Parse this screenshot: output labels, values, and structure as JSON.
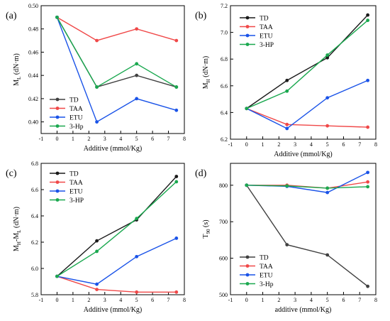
{
  "chart_data": [
    {
      "type": "line",
      "panel": "(a)",
      "xlabel": "Additive (mmol/Kg)",
      "ylabel_main": "M",
      "ylabel_sub": "L",
      "ylabel_unit": " (dN·m)",
      "x": [
        0,
        2.5,
        5,
        7.5
      ],
      "xlim": [
        -1,
        8
      ],
      "ylim": [
        0.39,
        0.5
      ],
      "xticks": [
        -1,
        0,
        1,
        2,
        3,
        4,
        5,
        6,
        7,
        8
      ],
      "yticks": [
        0.4,
        0.42,
        0.44,
        0.46,
        0.48,
        0.5
      ],
      "ytick_labels": [
        "0.40",
        "0.42",
        "0.44",
        "0.46",
        "0.48",
        "0.50"
      ],
      "legend_position": "middle-left",
      "series": [
        {
          "name": "TD",
          "color": "#404040",
          "values": [
            0.49,
            0.43,
            0.44,
            0.43
          ]
        },
        {
          "name": "TAA",
          "color": "#f04848",
          "values": [
            0.49,
            0.47,
            0.48,
            0.47
          ]
        },
        {
          "name": "ETU",
          "color": "#1a53e8",
          "values": [
            0.49,
            0.4,
            0.42,
            0.41
          ]
        },
        {
          "name": "3-Hp",
          "color": "#1aa84f",
          "values": [
            0.49,
            0.43,
            0.45,
            0.43
          ]
        }
      ]
    },
    {
      "type": "line",
      "panel": "(b)",
      "xlabel": "Additive (mmol/Kg)",
      "ylabel_main": "M",
      "ylabel_sub": "H",
      "ylabel_unit": " (dN·m)",
      "x": [
        0,
        2.5,
        5,
        7.5
      ],
      "xlim": [
        -1,
        8
      ],
      "ylim": [
        6.2,
        7.2
      ],
      "xticks": [
        -1,
        0,
        1,
        2,
        3,
        4,
        5,
        6,
        7,
        8
      ],
      "yticks": [
        6.2,
        6.4,
        6.6,
        6.8,
        7.0,
        7.2
      ],
      "ytick_labels": [
        "6.2",
        "6.4",
        "6.6",
        "6.8",
        "7.0",
        "7.2"
      ],
      "legend_position": "top-left",
      "series": [
        {
          "name": "TD",
          "color": "#1a1a1a",
          "values": [
            6.43,
            6.64,
            6.81,
            7.13
          ]
        },
        {
          "name": "TAA",
          "color": "#f04848",
          "values": [
            6.43,
            6.31,
            6.3,
            6.29
          ]
        },
        {
          "name": "ETU",
          "color": "#1a53e8",
          "values": [
            6.43,
            6.28,
            6.51,
            6.64
          ]
        },
        {
          "name": "3-HP",
          "color": "#1aa84f",
          "values": [
            6.43,
            6.56,
            6.83,
            7.09
          ]
        }
      ]
    },
    {
      "type": "line",
      "panel": "(c)",
      "xlabel": "Additive (mmol/Kg)",
      "ylabel_main": "M",
      "ylabel_sub": "H",
      "ylabel_mid": "-M",
      "ylabel_sub2": "L",
      "ylabel_unit": " (dN·m)",
      "x": [
        0,
        2.5,
        5,
        7.5
      ],
      "xlim": [
        -1,
        8
      ],
      "ylim": [
        5.8,
        6.8
      ],
      "xticks": [
        -1,
        0,
        1,
        2,
        3,
        4,
        5,
        6,
        7,
        8
      ],
      "yticks": [
        5.8,
        6.0,
        6.2,
        6.4,
        6.6,
        6.8
      ],
      "ytick_labels": [
        "5.8",
        "6.0",
        "6.2",
        "6.4",
        "6.6",
        "6.8"
      ],
      "legend_position": "top-left",
      "series": [
        {
          "name": "TD",
          "color": "#1a1a1a",
          "values": [
            5.94,
            6.21,
            6.37,
            6.7
          ]
        },
        {
          "name": "TAA",
          "color": "#f04848",
          "values": [
            5.94,
            5.84,
            5.82,
            5.82
          ]
        },
        {
          "name": "ETU",
          "color": "#1a53e8",
          "values": [
            5.94,
            5.88,
            6.09,
            6.23
          ]
        },
        {
          "name": "3-HP",
          "color": "#1aa84f",
          "values": [
            5.94,
            6.13,
            6.38,
            6.66
          ]
        }
      ]
    },
    {
      "type": "line",
      "panel": "(d)",
      "xlabel": "additive (mmol/Kg)",
      "ylabel_main": "T",
      "ylabel_sub": "90",
      "ylabel_unit": " (s)",
      "x": [
        0,
        2.5,
        5,
        7.5
      ],
      "xlim": [
        -1,
        8
      ],
      "ylim": [
        500,
        860
      ],
      "xticks": [
        -1,
        0,
        1,
        2,
        3,
        4,
        5,
        6,
        7,
        8
      ],
      "yticks": [
        500,
        600,
        700,
        800
      ],
      "ytick_labels": [
        "500",
        "600",
        "700",
        "800"
      ],
      "legend_position": "bottom-left",
      "series": [
        {
          "name": "TD",
          "color": "#404040",
          "values": [
            800,
            637,
            609,
            523
          ]
        },
        {
          "name": "TAA",
          "color": "#f04848",
          "values": [
            800,
            800,
            792,
            809
          ]
        },
        {
          "name": "ETU",
          "color": "#1a53e8",
          "values": [
            800,
            797,
            780,
            835
          ]
        },
        {
          "name": "3-Hp",
          "color": "#1aa84f",
          "values": [
            800,
            798,
            792,
            796
          ]
        }
      ]
    }
  ]
}
